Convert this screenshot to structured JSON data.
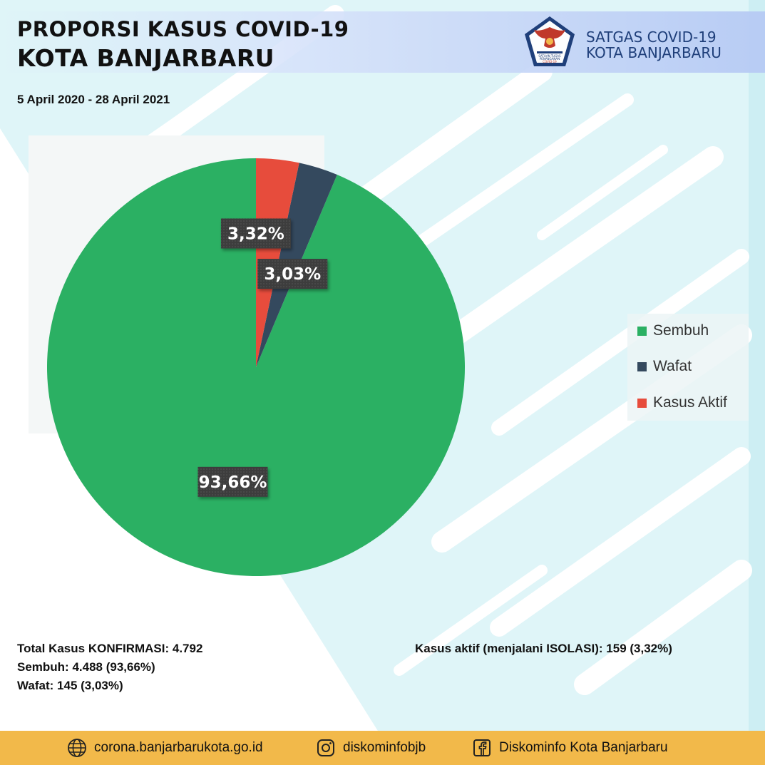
{
  "header": {
    "title_line1": "PROPORSI KASUS COVID-19",
    "title_line2": "KOTA BANJARBARU",
    "org_line1": "SATGAS COVID-19",
    "org_line2": "KOTA BANJARBARU",
    "logo_icon": "garuda-emblem-icon",
    "logo_text_lines": [
      "SATUAN TUGAS",
      "PENANGANAN",
      "COVID-19"
    ]
  },
  "date_range": "5 April 2020 - 28 April 2021",
  "chart_data": {
    "type": "pie",
    "slices": [
      {
        "label": "Sembuh",
        "value": 93.66,
        "display": "93,66%",
        "color": "#2bb063"
      },
      {
        "label": "Wafat",
        "value": 3.03,
        "display": "3,03%",
        "color": "#34495e"
      },
      {
        "label": "Kasus Aktif",
        "value": 3.32,
        "display": "3,32%",
        "color": "#e74c3c"
      }
    ],
    "legend": {
      "position": "right",
      "entries": [
        "Sembuh",
        "Wafat",
        "Kasus Aktif"
      ]
    }
  },
  "stats": {
    "total": "Total Kasus KONFIRMASI: 4.792",
    "sembuh": "Sembuh: 4.488 (93,66%)",
    "wafat": "Wafat: 145 (3,03%)",
    "aktif": "Kasus aktif (menjalani ISOLASI): 159 (3,32%)"
  },
  "footer": {
    "website": "corona.banjarbarukota.go.id",
    "instagram": "diskominfobjb",
    "facebook": "Diskominfo Kota Banjarbaru",
    "icons": [
      "globe-icon",
      "instagram-icon",
      "facebook-icon"
    ]
  }
}
